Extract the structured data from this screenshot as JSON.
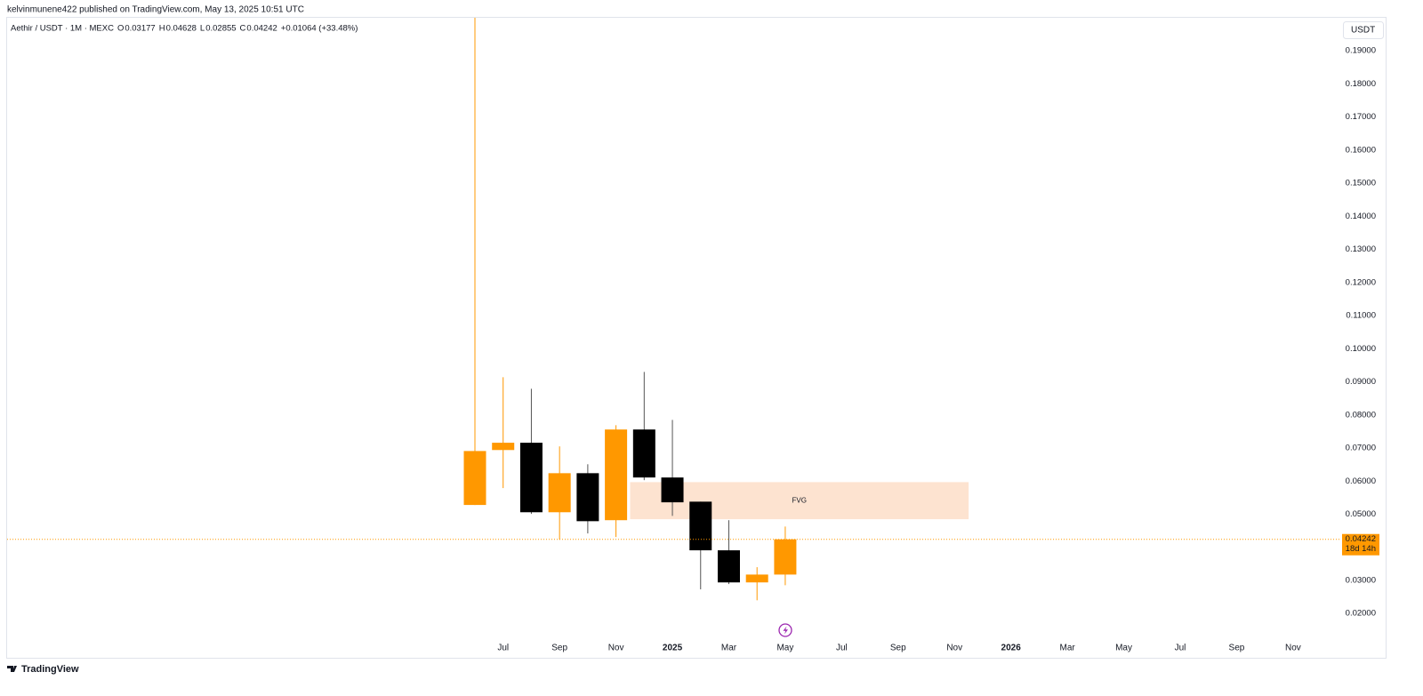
{
  "header": {
    "published": "kelvinmunene422 published on TradingView.com, May 13, 2025 10:51 UTC",
    "symbol": "Aethir / USDT · 1M · MEXC",
    "ohlc_labels": [
      "O",
      "H",
      "L",
      "C"
    ],
    "change": "+0.01064 (+33.48%)",
    "currency": "USDT",
    "countdown": "18d 14h",
    "brand": "TradingView"
  },
  "chart_data": {
    "type": "candlestick",
    "categories": [
      null,
      "Jul",
      null,
      "Sep",
      null,
      "Nov",
      null,
      "2025",
      null,
      "Mar",
      null,
      "May",
      null,
      "Jul",
      null,
      "Sep",
      null,
      "Nov",
      null,
      "2026",
      null,
      "Mar",
      null,
      "May",
      null,
      "Jul",
      null,
      "Sep",
      null,
      "Nov"
    ],
    "open": [
      0.0528,
      0.0694,
      0.0716,
      0.0506,
      0.0624,
      0.0482,
      0.0756,
      0.0611,
      0.0538,
      0.0391,
      0.0294,
      0.03177,
      null,
      null,
      null,
      null,
      null,
      null,
      null,
      null,
      null,
      null,
      null,
      null,
      null,
      null,
      null,
      null,
      null,
      null
    ],
    "high": [
      0.2,
      0.0914,
      0.0879,
      0.0705,
      0.0651,
      0.0769,
      0.093,
      0.0785,
      0.0538,
      0.0482,
      0.034,
      0.04628,
      null,
      null,
      null,
      null,
      null,
      null,
      null,
      null,
      null,
      null,
      null,
      null,
      null,
      null,
      null,
      null,
      null,
      null
    ],
    "low": [
      0.0528,
      0.0579,
      0.0501,
      0.0423,
      0.0442,
      0.0431,
      0.0603,
      0.0495,
      0.0273,
      0.0289,
      0.024,
      0.02855,
      null,
      null,
      null,
      null,
      null,
      null,
      null,
      null,
      null,
      null,
      null,
      null,
      null,
      null,
      null,
      null,
      null,
      null
    ],
    "close": [
      0.0691,
      0.0716,
      0.0506,
      0.0624,
      0.0479,
      0.0756,
      0.0611,
      0.0536,
      0.0391,
      0.0294,
      0.03177,
      0.04242,
      null,
      null,
      null,
      null,
      null,
      null,
      null,
      null,
      null,
      null,
      null,
      null,
      null,
      null,
      null,
      null,
      null,
      null
    ],
    "up_color": "#ff9800",
    "down_color": "#000000",
    "last_price_color": "#ff9800",
    "ylim": [
      0.012,
      0.2
    ],
    "yticks": [
      {
        "value": 0.02,
        "label": "0.02000"
      },
      {
        "value": 0.03,
        "label": "0.03000"
      },
      {
        "value": 0.04,
        "label": "0.04000"
      },
      {
        "value": 0.05,
        "label": "0.05000"
      },
      {
        "value": 0.06,
        "label": "0.06000"
      },
      {
        "value": 0.07,
        "label": "0.07000"
      },
      {
        "value": 0.08,
        "label": "0.08000"
      },
      {
        "value": 0.09,
        "label": "0.09000"
      },
      {
        "value": 0.1,
        "label": "0.10000"
      },
      {
        "value": 0.11,
        "label": "0.11000"
      },
      {
        "value": 0.12,
        "label": "0.12000"
      },
      {
        "value": 0.13,
        "label": "0.13000"
      },
      {
        "value": 0.14,
        "label": "0.14000"
      },
      {
        "value": 0.15,
        "label": "0.15000"
      },
      {
        "value": 0.16,
        "label": "0.16000"
      },
      {
        "value": 0.17,
        "label": "0.17000"
      },
      {
        "value": 0.18,
        "label": "0.18000"
      },
      {
        "value": 0.19,
        "label": "0.19000"
      }
    ],
    "zones": [
      {
        "label": "FVG",
        "ylim": [
          0.0485,
          0.0597
        ],
        "from": 6,
        "to": 18,
        "color": "#fde3d0"
      }
    ]
  }
}
